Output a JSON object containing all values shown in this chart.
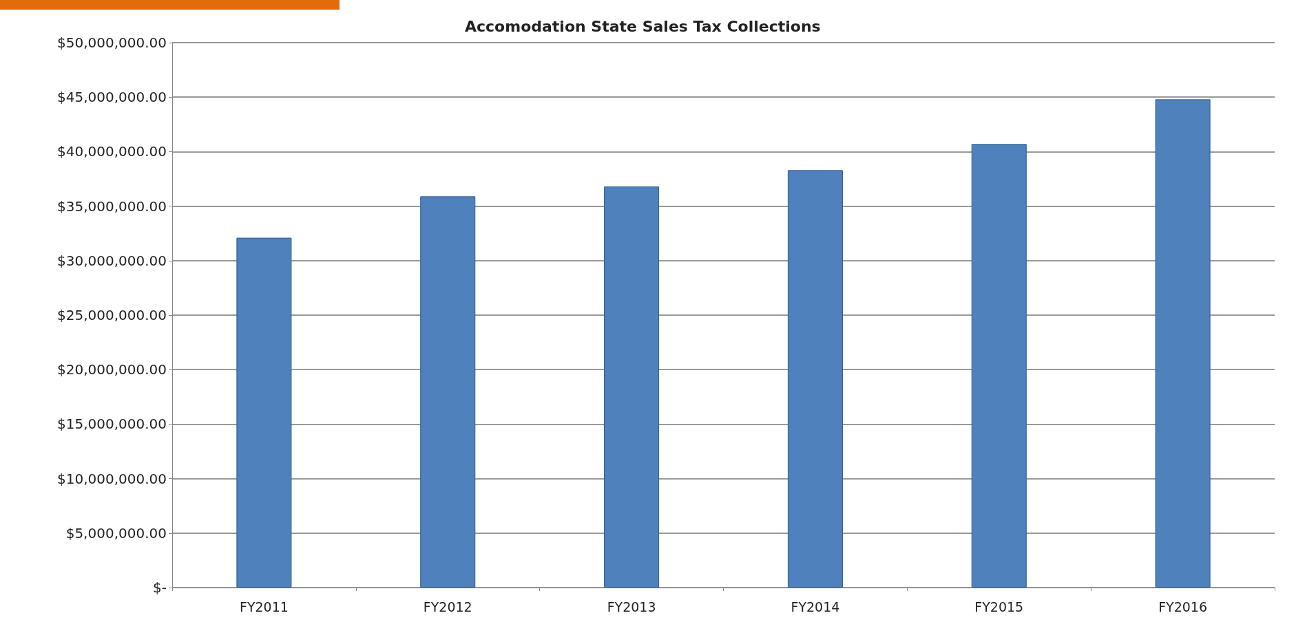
{
  "chart_data": {
    "type": "bar",
    "title": "Accomodation State Sales Tax Collections",
    "categories": [
      "FY2011",
      "FY2012",
      "FY2013",
      "FY2014",
      "FY2015",
      "FY2016"
    ],
    "values": [
      32100000,
      35900000,
      36800000,
      38300000,
      40700000,
      44800000
    ],
    "color": "#4f81bd",
    "ylim": [
      0,
      50000000
    ],
    "yticks": [
      {
        "value": 0,
        "label": "$-"
      },
      {
        "value": 5000000,
        "label": "$5,000,000.00"
      },
      {
        "value": 10000000,
        "label": "$10,000,000.00"
      },
      {
        "value": 15000000,
        "label": "$15,000,000.00"
      },
      {
        "value": 20000000,
        "label": "$20,000,000.00"
      },
      {
        "value": 25000000,
        "label": "$25,000,000.00"
      },
      {
        "value": 30000000,
        "label": "$30,000,000.00"
      },
      {
        "value": 35000000,
        "label": "$35,000,000.00"
      },
      {
        "value": 40000000,
        "label": "$40,000,000.00"
      },
      {
        "value": 45000000,
        "label": "$45,000,000.00"
      },
      {
        "value": 50000000,
        "label": "$50,000,000.00"
      }
    ],
    "grid": true
  }
}
